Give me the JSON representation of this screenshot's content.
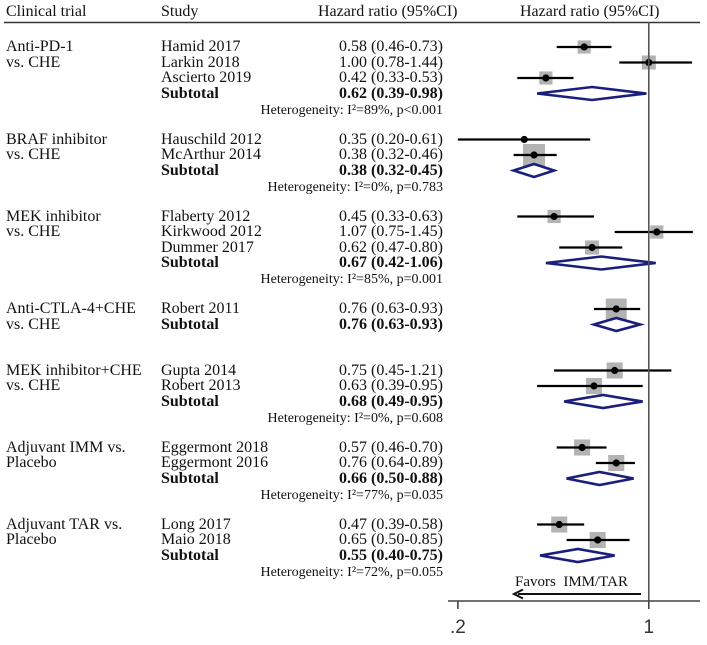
{
  "chart_data": {
    "type": "scatter",
    "subtype": "forest-plot",
    "title": "",
    "columns": {
      "clinical_trial": "Clinical trial",
      "study": "Study",
      "hr_text": "Hazard ratio (95%CI)",
      "plot": "Hazard ratio (95%CI)"
    },
    "xscale": "log",
    "xlim": [
      0.184,
      1.54
    ],
    "null_line": 1,
    "x_ticks": [
      {
        "value": 0.2,
        "label": ".2"
      },
      {
        "value": 1,
        "label": "1"
      }
    ],
    "annotation": {
      "text": "Favors  IMM/TAR",
      "arrow_direction": "left"
    },
    "groups": [
      {
        "trial": [
          "Anti-PD-1",
          "vs. CHE"
        ],
        "studies": [
          {
            "name": "Hamid 2017",
            "hr": "0.58 (0.46-0.73)",
            "est": 0.58,
            "lo": 0.46,
            "hi": 0.73,
            "box": 0.6
          },
          {
            "name": "Larkin 2018",
            "hr": "1.00 (0.78-1.44)",
            "est": 1.0,
            "lo": 0.78,
            "hi": 1.44,
            "box": 0.64
          },
          {
            "name": "Ascierto 2019",
            "hr": "0.42 (0.33-0.53)",
            "est": 0.42,
            "lo": 0.33,
            "hi": 0.53,
            "box": 0.6
          }
        ],
        "subtotal": {
          "name": "Subtotal",
          "hr": "0.62 (0.39-0.98)",
          "est": 0.62,
          "lo": 0.39,
          "hi": 0.98
        },
        "heterogeneity": "Heterogeneity: I²=89%, p<0.001"
      },
      {
        "trial": [
          "BRAF inhibitor",
          "vs. CHE"
        ],
        "studies": [
          {
            "name": "Hauschild 2012",
            "hr": "0.35 (0.20-0.61)",
            "est": 0.35,
            "lo": 0.2,
            "hi": 0.61,
            "box": 0
          },
          {
            "name": "McArthur 2014",
            "hr": "0.38 (0.32-0.46)",
            "est": 0.38,
            "lo": 0.32,
            "hi": 0.46,
            "box": 1.0
          }
        ],
        "subtotal": {
          "name": "Subtotal",
          "hr": "0.38 (0.32-0.45)",
          "est": 0.38,
          "lo": 0.32,
          "hi": 0.45
        },
        "heterogeneity": "Heterogeneity: I²=0%, p=0.783"
      },
      {
        "trial": [
          "MEK inhibitor",
          "vs. CHE"
        ],
        "studies": [
          {
            "name": "Flaberty 2012",
            "hr": "0.45 (0.33-0.63)",
            "est": 0.45,
            "lo": 0.33,
            "hi": 0.63,
            "box": 0.6
          },
          {
            "name": "Kirkwood 2012",
            "hr": "1.07 (0.75-1.45)",
            "est": 1.07,
            "lo": 0.75,
            "hi": 1.45,
            "box": 0.6
          },
          {
            "name": "Dummer 2017",
            "hr": "0.62 (0.47-0.80)",
            "est": 0.62,
            "lo": 0.47,
            "hi": 0.8,
            "box": 0.64
          }
        ],
        "subtotal": {
          "name": "Subtotal",
          "hr": "0.67 (0.42-1.06)",
          "est": 0.67,
          "lo": 0.42,
          "hi": 1.06
        },
        "heterogeneity": "Heterogeneity: I²=85%, p=0.001"
      },
      {
        "trial": [
          "Anti-CTLA-4+CHE",
          "vs. CHE"
        ],
        "studies": [
          {
            "name": "Robert 2011",
            "hr": "0.76 (0.63-0.93)",
            "est": 0.76,
            "lo": 0.63,
            "hi": 0.93,
            "box": 0.95
          }
        ],
        "subtotal": {
          "name": "Subtotal",
          "hr": "0.76 (0.63-0.93)",
          "est": 0.76,
          "lo": 0.63,
          "hi": 0.93
        },
        "heterogeneity": ""
      },
      {
        "trial": [
          "MEK inhibitor+CHE",
          "vs. CHE"
        ],
        "studies": [
          {
            "name": "Gupta 2014",
            "hr": "0.75 (0.45-1.21)",
            "est": 0.75,
            "lo": 0.45,
            "hi": 1.21,
            "box": 0.73
          },
          {
            "name": "Robert 2013",
            "hr": "0.63 (0.39-0.95)",
            "est": 0.63,
            "lo": 0.39,
            "hi": 0.95,
            "box": 0.73
          }
        ],
        "subtotal": {
          "name": "Subtotal",
          "hr": "0.68 (0.49-0.95)",
          "est": 0.68,
          "lo": 0.49,
          "hi": 0.95
        },
        "heterogeneity": "Heterogeneity: I²=0%, p=0.608"
      },
      {
        "trial": [
          "Adjuvant IMM vs.",
          "Placebo"
        ],
        "studies": [
          {
            "name": "Eggermont 2018",
            "hr": "0.57 (0.46-0.70)",
            "est": 0.57,
            "lo": 0.46,
            "hi": 0.7,
            "box": 0.73
          },
          {
            "name": "Eggermont 2016",
            "hr": "0.76 (0.64-0.89)",
            "est": 0.76,
            "lo": 0.64,
            "hi": 0.89,
            "box": 0.73
          }
        ],
        "subtotal": {
          "name": "Subtotal",
          "hr": "0.66 (0.50-0.88)",
          "est": 0.66,
          "lo": 0.5,
          "hi": 0.88
        },
        "heterogeneity": "Heterogeneity: I²=77%, p=0.035"
      },
      {
        "trial": [
          "Adjuvant TAR vs.",
          "Placebo"
        ],
        "studies": [
          {
            "name": "Long 2017",
            "hr": "0.47 (0.39-0.58)",
            "est": 0.47,
            "lo": 0.39,
            "hi": 0.58,
            "box": 0.73
          },
          {
            "name": "Maio 2018",
            "hr": "0.65 (0.50-0.85)",
            "est": 0.65,
            "lo": 0.5,
            "hi": 0.85,
            "box": 0.73
          }
        ],
        "subtotal": {
          "name": "Subtotal",
          "hr": "0.55 (0.40-0.75)",
          "est": 0.55,
          "lo": 0.4,
          "hi": 0.75
        },
        "heterogeneity": "Heterogeneity: I²=72%, p=0.055"
      }
    ]
  },
  "colors": {
    "text": "#111111",
    "ci_line": "#000000",
    "weight_box": "#b3b3b3",
    "point": "#000000",
    "pooled_diamond": "#1a1f7c",
    "null_line": "#555555",
    "axis": "#444444"
  }
}
